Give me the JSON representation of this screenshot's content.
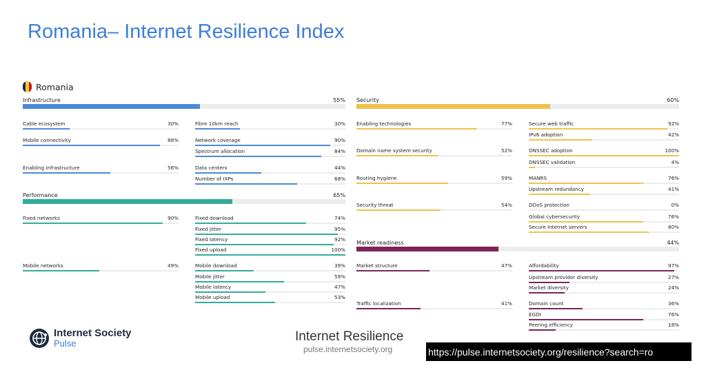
{
  "slide_title": "Romania– Internet Resilience Index",
  "country": "Romania",
  "colors": {
    "infrastructure": "#4a8ad8",
    "performance": "#33ab97",
    "security": "#efc24b",
    "market": "#7a2458",
    "flag_blue": "#002b7f",
    "flag_yellow": "#fcd116",
    "flag_red": "#ce1126"
  },
  "categories": {
    "infrastructure": {
      "label": "Infrastructure",
      "pct_text": "55%",
      "value": 55
    },
    "performance": {
      "label": "Performance",
      "pct_text": "65%",
      "value": 65
    },
    "security": {
      "label": "Security",
      "pct_text": "60%",
      "value": 60
    },
    "market": {
      "label": "Market readiness",
      "pct_text": "44%",
      "value": 44
    }
  },
  "metrics": {
    "infra_left": [
      {
        "label": "Cable ecosystem",
        "pct_text": "30%",
        "value": 30
      },
      {
        "label": "Mobile connectivity",
        "pct_text": "88%",
        "value": 88
      },
      {
        "label": "Enabling infrastructure",
        "pct_text": "56%",
        "value": 56
      }
    ],
    "infra_right": [
      {
        "label": "Fibre 10km reach",
        "pct_text": "30%",
        "value": 30
      },
      {
        "label": "Network coverage",
        "pct_text": "90%",
        "value": 90
      },
      {
        "label": "Spectrum allocation",
        "pct_text": "84%",
        "value": 84
      },
      {
        "label": "Data centers",
        "pct_text": "44%",
        "value": 44
      },
      {
        "label": "Number of IXPs",
        "pct_text": "68%",
        "value": 68
      }
    ],
    "perf_left": [
      {
        "label": "Fixed networks",
        "pct_text": "90%",
        "value": 90
      },
      {
        "label": "Mobile networks",
        "pct_text": "49%",
        "value": 49
      }
    ],
    "perf_right": [
      {
        "label": "Fixed download",
        "pct_text": "74%",
        "value": 74
      },
      {
        "label": "Fixed jitter",
        "pct_text": "95%",
        "value": 95
      },
      {
        "label": "Fixed latency",
        "pct_text": "92%",
        "value": 92
      },
      {
        "label": "Fixed upload",
        "pct_text": "100%",
        "value": 100
      },
      {
        "label": "Mobile download",
        "pct_text": "39%",
        "value": 39
      },
      {
        "label": "Mobile jitter",
        "pct_text": "59%",
        "value": 59
      },
      {
        "label": "Mobile latency",
        "pct_text": "47%",
        "value": 47
      },
      {
        "label": "Mobile upload",
        "pct_text": "53%",
        "value": 53
      }
    ],
    "sec_left": [
      {
        "label": "Enabling technologies",
        "pct_text": "77%",
        "value": 77
      },
      {
        "label": "Domain name system security",
        "pct_text": "52%",
        "value": 52
      },
      {
        "label": "Routing hygiene",
        "pct_text": "59%",
        "value": 59
      },
      {
        "label": "Security threat",
        "pct_text": "54%",
        "value": 54
      }
    ],
    "sec_right": [
      {
        "label": "Secure web traffic",
        "pct_text": "92%",
        "value": 92
      },
      {
        "label": "IPv6 adoption",
        "pct_text": "42%",
        "value": 42
      },
      {
        "label": "DNSSEC adoption",
        "pct_text": "100%",
        "value": 100
      },
      {
        "label": "DNSSEC validation",
        "pct_text": "4%",
        "value": 4
      },
      {
        "label": "MANRS",
        "pct_text": "76%",
        "value": 76
      },
      {
        "label": "Upstream redundancy",
        "pct_text": "41%",
        "value": 41
      },
      {
        "label": "DDoS protection",
        "pct_text": "0%",
        "value": 0
      },
      {
        "label": "Global cybersecurity",
        "pct_text": "76%",
        "value": 76
      },
      {
        "label": "Secure Internet servers",
        "pct_text": "80%",
        "value": 80
      }
    ],
    "mkt_left": [
      {
        "label": "Market structure",
        "pct_text": "47%",
        "value": 47
      },
      {
        "label": "Traffic localization",
        "pct_text": "41%",
        "value": 41
      }
    ],
    "mkt_right": [
      {
        "label": "Affordability",
        "pct_text": "97%",
        "value": 97
      },
      {
        "label": "Upstream provider diversity",
        "pct_text": "27%",
        "value": 27
      },
      {
        "label": "Market diversity",
        "pct_text": "24%",
        "value": 24
      },
      {
        "label": "Domain count",
        "pct_text": "36%",
        "value": 36
      },
      {
        "label": "EGDI",
        "pct_text": "76%",
        "value": 76
      },
      {
        "label": "Peering efficiency",
        "pct_text": "18%",
        "value": 18
      }
    ]
  },
  "logo": {
    "name": "Internet Society",
    "sub": "Pulse"
  },
  "footer": {
    "title": "Internet Resilience",
    "url": "pulse.internetsociety.org"
  },
  "url_banner": "https://pulse.internetsociety.org/resilience?search=ro"
}
